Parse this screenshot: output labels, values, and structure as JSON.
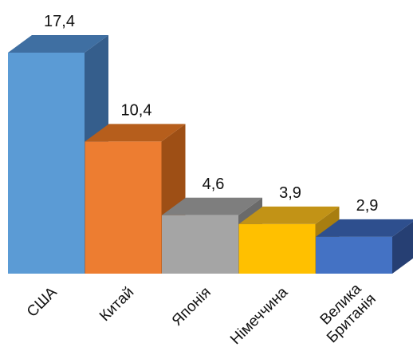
{
  "chart_data": {
    "type": "bar",
    "categories": [
      "США",
      "Китай",
      "Японія",
      "Німеччина",
      "Велика Британія"
    ],
    "category_lines": [
      [
        "США"
      ],
      [
        "Китай"
      ],
      [
        "Японія"
      ],
      [
        "Німеччина"
      ],
      [
        "Велика",
        "Британія"
      ]
    ],
    "values": [
      17.4,
      10.4,
      4.6,
      3.9,
      2.9
    ],
    "data_labels": [
      "17,4",
      "10,4",
      "4,6",
      "3,9",
      "2,9"
    ],
    "style": "3d-column",
    "grid": false,
    "legend": "none",
    "colors": {
      "front": [
        "#5B9BD5",
        "#ED7D31",
        "#A5A5A5",
        "#FFC000",
        "#4472C4"
      ],
      "top": [
        "#3F6FA2",
        "#B65E1C",
        "#7E7E7E",
        "#C29316",
        "#2E4F8E"
      ],
      "side": [
        "#355E8C",
        "#9E4F15",
        "#6A6A6A",
        "#A87E10",
        "#263F73"
      ]
    }
  }
}
